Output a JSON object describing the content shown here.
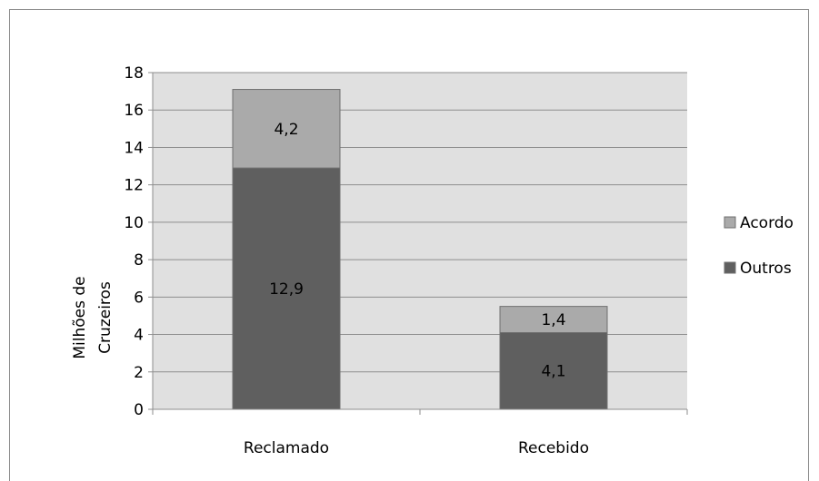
{
  "chart_data": {
    "type": "bar",
    "stacked": true,
    "categories": [
      "Reclamado",
      "Recebido"
    ],
    "series": [
      {
        "name": "Outros",
        "values": [
          12.9,
          4.1
        ],
        "labels": [
          "12,9",
          "4,1"
        ],
        "color": "#5f5f5f"
      },
      {
        "name": "Acordo",
        "values": [
          4.2,
          1.4
        ],
        "labels": [
          "4,2",
          "1,4"
        ],
        "color": "#aaaaaa"
      }
    ],
    "ylabel_lines": [
      "Milhões de",
      "Cruzeiros"
    ],
    "ylim": [
      0,
      18
    ],
    "yticks": [
      "0",
      "2",
      "4",
      "6",
      "8",
      "10",
      "12",
      "14",
      "16",
      "18"
    ],
    "grid": true,
    "plot_background": "#e0e0e0",
    "legend_position": "right",
    "legend_order": [
      "Acordo",
      "Outros"
    ]
  }
}
